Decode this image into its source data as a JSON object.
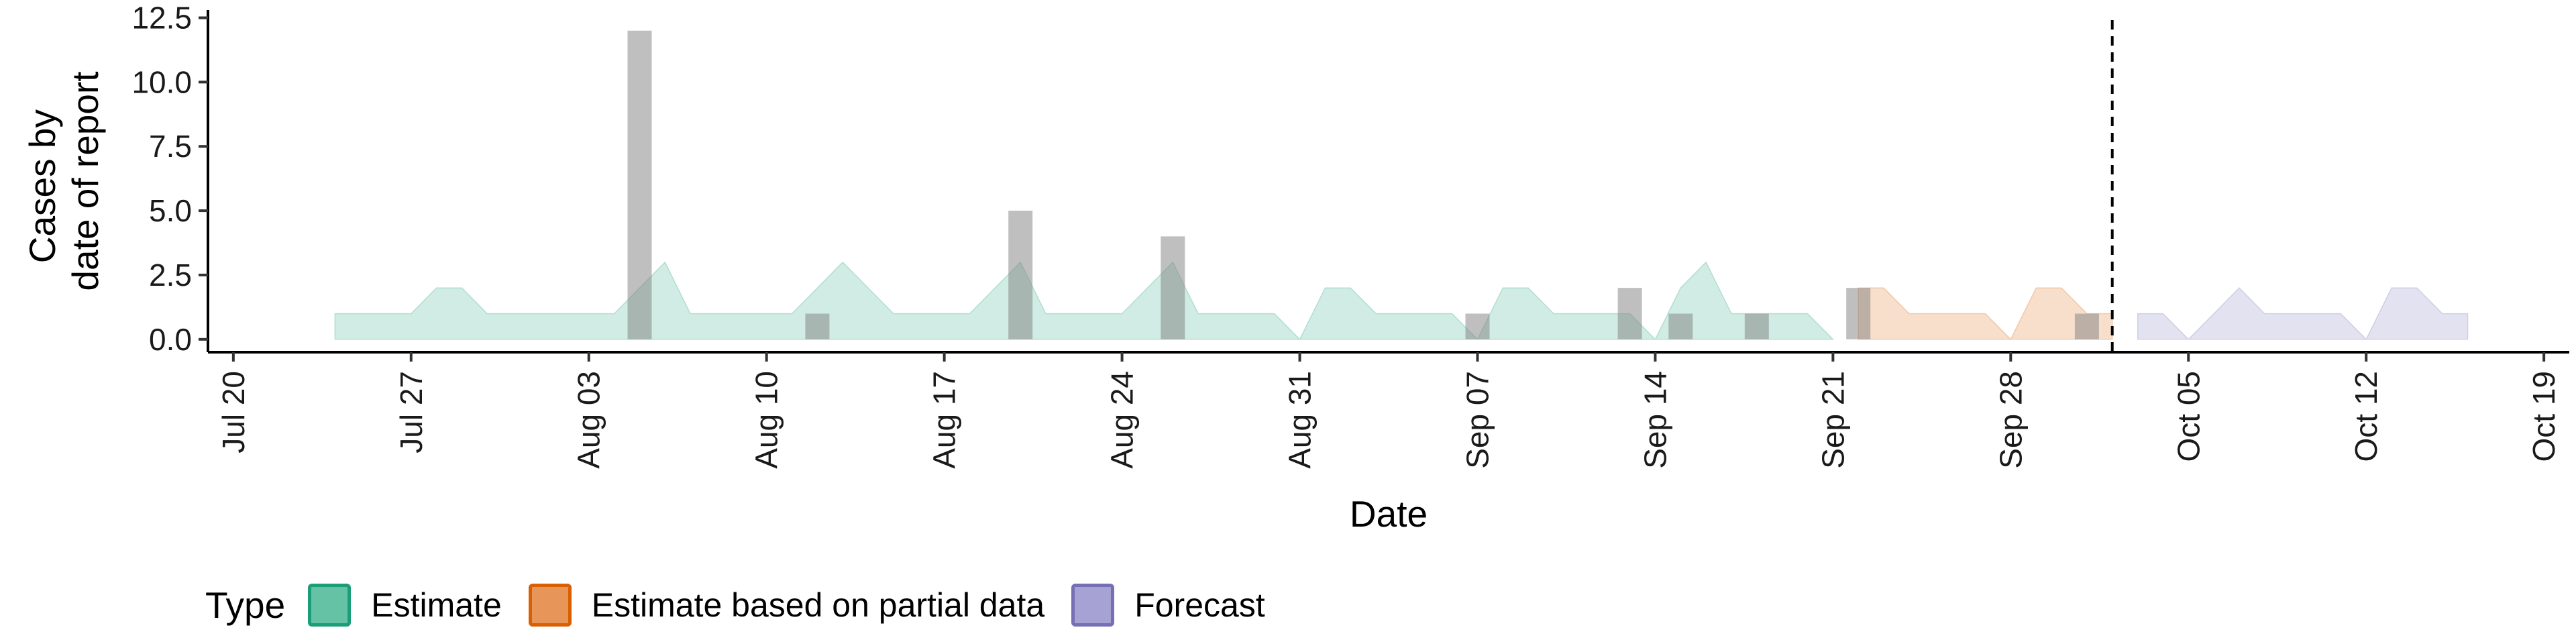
{
  "chart_data": {
    "type": "area",
    "xlabel": "Date",
    "ylabel_lines": [
      "Cases by",
      "date of report"
    ],
    "yticks": [
      "0.0",
      "2.5",
      "5.0",
      "7.5",
      "10.0",
      "12.5"
    ],
    "ylim": [
      -0.5,
      12.8
    ],
    "xlim": [
      "2020-07-19",
      "2020-10-20"
    ],
    "xticks": [
      {
        "date": "2020-07-20",
        "label": "Jul 20"
      },
      {
        "date": "2020-07-27",
        "label": "Jul 27"
      },
      {
        "date": "2020-08-03",
        "label": "Aug 03"
      },
      {
        "date": "2020-08-10",
        "label": "Aug 10"
      },
      {
        "date": "2020-08-17",
        "label": "Aug 17"
      },
      {
        "date": "2020-08-24",
        "label": "Aug 24"
      },
      {
        "date": "2020-08-31",
        "label": "Aug 31"
      },
      {
        "date": "2020-09-07",
        "label": "Sep 07"
      },
      {
        "date": "2020-09-14",
        "label": "Sep 14"
      },
      {
        "date": "2020-09-21",
        "label": "Sep 21"
      },
      {
        "date": "2020-09-28",
        "label": "Sep 28"
      },
      {
        "date": "2020-10-05",
        "label": "Oct 05"
      },
      {
        "date": "2020-10-12",
        "label": "Oct 12"
      },
      {
        "date": "2020-10-19",
        "label": "Oct 19"
      }
    ],
    "forecast_line_date": "2020-10-02",
    "reported_cases": {
      "dates": [
        "2020-08-05",
        "2020-08-12",
        "2020-08-20",
        "2020-08-26",
        "2020-09-07",
        "2020-09-13",
        "2020-09-15",
        "2020-09-18",
        "2020-09-22",
        "2020-10-01"
      ],
      "values": [
        12,
        1,
        5,
        4,
        1,
        2,
        1,
        1,
        2,
        1
      ]
    },
    "series": [
      {
        "name": "Estimate",
        "dates": [
          "2020-07-24",
          "2020-07-25",
          "2020-07-26",
          "2020-07-27",
          "2020-07-28",
          "2020-07-29",
          "2020-07-30",
          "2020-07-31",
          "2020-08-01",
          "2020-08-02",
          "2020-08-03",
          "2020-08-04",
          "2020-08-05",
          "2020-08-06",
          "2020-08-07",
          "2020-08-08",
          "2020-08-09",
          "2020-08-10",
          "2020-08-11",
          "2020-08-12",
          "2020-08-13",
          "2020-08-14",
          "2020-08-15",
          "2020-08-16",
          "2020-08-17",
          "2020-08-18",
          "2020-08-19",
          "2020-08-20",
          "2020-08-21",
          "2020-08-22",
          "2020-08-23",
          "2020-08-24",
          "2020-08-25",
          "2020-08-26",
          "2020-08-27",
          "2020-08-28",
          "2020-08-29",
          "2020-08-30",
          "2020-08-31",
          "2020-09-01",
          "2020-09-02",
          "2020-09-03",
          "2020-09-04",
          "2020-09-05",
          "2020-09-06",
          "2020-09-07",
          "2020-09-08",
          "2020-09-09",
          "2020-09-10",
          "2020-09-11",
          "2020-09-12",
          "2020-09-13",
          "2020-09-14",
          "2020-09-15",
          "2020-09-16",
          "2020-09-17",
          "2020-09-18",
          "2020-09-19",
          "2020-09-20",
          "2020-09-21"
        ],
        "upper": [
          1,
          1,
          1,
          1,
          2,
          2,
          1,
          1,
          1,
          1,
          1,
          1,
          2,
          3,
          1,
          1,
          1,
          1,
          1,
          2,
          3,
          2,
          1,
          1,
          1,
          1,
          2,
          3,
          1,
          1,
          1,
          1,
          2,
          3,
          1,
          1,
          1,
          1,
          0,
          2,
          2,
          1,
          1,
          1,
          1,
          0,
          2,
          2,
          1,
          1,
          1,
          1,
          0,
          2,
          3,
          1,
          1,
          1,
          1,
          0
        ],
        "lower": [
          0,
          0,
          0,
          0,
          0,
          0,
          0,
          0,
          0,
          0,
          0,
          0,
          0,
          0,
          0,
          0,
          0,
          0,
          0,
          0,
          0,
          0,
          0,
          0,
          0,
          0,
          0,
          0,
          0,
          0,
          0,
          0,
          0,
          0,
          0,
          0,
          0,
          0,
          0,
          0,
          0,
          0,
          0,
          0,
          0,
          0,
          0,
          0,
          0,
          0,
          0,
          0,
          0,
          0,
          0,
          0,
          0,
          0,
          0,
          0
        ]
      },
      {
        "name": "Estimate based on partial data",
        "dates": [
          "2020-09-22",
          "2020-09-23",
          "2020-09-24",
          "2020-09-25",
          "2020-09-26",
          "2020-09-27",
          "2020-09-28",
          "2020-09-29",
          "2020-09-30",
          "2020-10-01",
          "2020-10-02"
        ],
        "upper": [
          2,
          2,
          1,
          1,
          1,
          1,
          0,
          2,
          2,
          1,
          1
        ],
        "lower": [
          0,
          0,
          0,
          0,
          0,
          0,
          0,
          0,
          0,
          0,
          0
        ]
      },
      {
        "name": "Forecast",
        "dates": [
          "2020-10-03",
          "2020-10-04",
          "2020-10-05",
          "2020-10-06",
          "2020-10-07",
          "2020-10-08",
          "2020-10-09",
          "2020-10-10",
          "2020-10-11",
          "2020-10-12",
          "2020-10-13",
          "2020-10-14",
          "2020-10-15",
          "2020-10-16"
        ],
        "upper": [
          1,
          1,
          0,
          1,
          2,
          1,
          1,
          1,
          1,
          0,
          2,
          2,
          1,
          1
        ],
        "lower": [
          0,
          0,
          0,
          0,
          0,
          0,
          0,
          0,
          0,
          0,
          0,
          0,
          0,
          0
        ]
      }
    ],
    "legend": {
      "title": "Type",
      "position": "bottom",
      "items": [
        {
          "label": "Estimate",
          "fill": "#66c2a5",
          "border": "#1b9e77"
        },
        {
          "label": "Estimate based on partial data",
          "fill": "#e8955a",
          "border": "#d95f02"
        },
        {
          "label": "Forecast",
          "fill": "#a6a3d4",
          "border": "#7570b3"
        }
      ]
    },
    "colors": {
      "estimate_area": "#1b9e77",
      "partial_area": "#d95f02",
      "forecast_area": "#7570b3",
      "reported_bar": "#7f7f7f"
    }
  }
}
